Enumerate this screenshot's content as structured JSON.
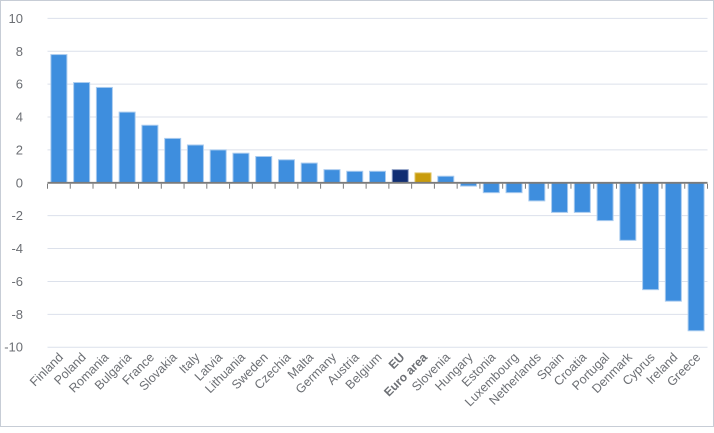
{
  "chart_data": {
    "type": "bar",
    "title": "",
    "xlabel": "",
    "ylabel": "",
    "ylim": [
      -10,
      10
    ],
    "ytick_step": 2,
    "grid": true,
    "legend": false,
    "y_tick_labels": [
      "10",
      "8",
      "6",
      "4",
      "2",
      "0",
      "-2",
      "-4",
      "-6",
      "-8",
      "-10"
    ],
    "categories": [
      "Finland",
      "Poland",
      "Romania",
      "Bulgaria",
      "France",
      "Slovakia",
      "Italy",
      "Latvia",
      "Lithuania",
      "Sweden",
      "Czechia",
      "Malta",
      "Germany",
      "Austria",
      "Belgium",
      "EU",
      "Euro area",
      "Slovenia",
      "Hungary",
      "Estonia",
      "Luxembourg",
      "Netherlands",
      "Spain",
      "Croatia",
      "Portugal",
      "Denmark",
      "Cyprus",
      "Ireland",
      "Greece"
    ],
    "values": [
      7.8,
      6.1,
      5.8,
      4.3,
      3.5,
      2.7,
      2.3,
      2.0,
      1.8,
      1.6,
      1.4,
      1.2,
      0.8,
      0.7,
      0.7,
      0.8,
      0.6,
      0.4,
      -0.2,
      -0.6,
      -0.6,
      -1.1,
      -1.8,
      -1.8,
      -2.3,
      -3.5,
      -6.5,
      -7.2,
      -9.0
    ],
    "bold_categories": [
      "EU",
      "Euro area"
    ],
    "special_bars": {
      "EU": "eu",
      "Euro area": "euro_area"
    }
  },
  "colors": {
    "bar_default_fill": "#3E8EDE",
    "bar_default_border": "#A9CBEF",
    "bar_eu_fill": "#112E73",
    "bar_eu_border": "#8C9DC4",
    "bar_euro_area_fill": "#C99C0C",
    "bar_euro_area_border": "#DFC25E",
    "gridline": "#DCE1EB",
    "axis_line": "#7B7B7B",
    "tick": "#7B7B7B",
    "label": "#6C6F74",
    "frame_border": "#C7CDD6",
    "background": "#FFFFFF"
  }
}
